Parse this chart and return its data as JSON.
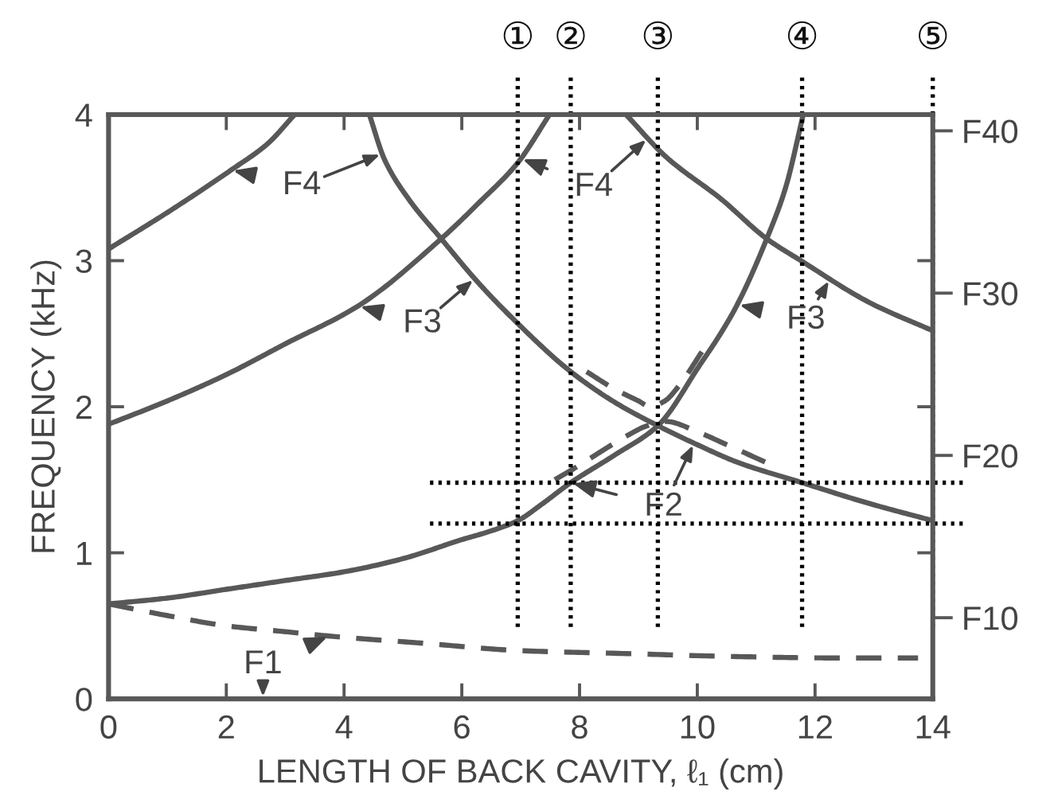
{
  "chart_data": {
    "type": "line",
    "xlabel": "LENGTH OF BACK CAVITY, ℓ₁ (cm)",
    "ylabel": "FREQUENCY (kHz)",
    "xlim": [
      0,
      14
    ],
    "xticks": [
      0,
      2,
      4,
      6,
      8,
      10,
      12,
      14
    ],
    "ylim": [
      0,
      4
    ],
    "yticks": [
      0,
      1,
      2,
      3,
      4
    ],
    "y2_categories": [
      "F40",
      "F30",
      "F20",
      "F10"
    ],
    "grid": false,
    "series": [
      {
        "color": "#585858",
        "line_style": "solid",
        "x": [
          0,
          1,
          2,
          3,
          4,
          5,
          6,
          6.5,
          6.95,
          7.35,
          7.85,
          8.6,
          9.33,
          10.05,
          10.41,
          10.68,
          11.18,
          11.5,
          11.8
        ],
        "values": [
          0.65,
          0.69,
          0.75,
          0.81,
          0.87,
          0.96,
          1.09,
          1.15,
          1.22,
          1.33,
          1.48,
          1.67,
          1.87,
          2.29,
          2.51,
          2.7,
          3.15,
          3.5,
          4.0
        ]
      },
      {
        "color": "#585858",
        "line_style": "solid",
        "x": [
          0,
          1,
          2,
          3,
          4.24,
          5.65,
          6.3,
          6.95,
          7.49
        ],
        "values": [
          1.88,
          2.04,
          2.22,
          2.43,
          2.69,
          3.15,
          3.4,
          3.67,
          4.0
        ]
      },
      {
        "color": "#585858",
        "line_style": "solid",
        "x": [
          0,
          1,
          2.08,
          2.7,
          3.16
        ],
        "values": [
          3.08,
          3.33,
          3.62,
          3.8,
          4.0
        ]
      },
      {
        "color": "#585858",
        "line_style": "solid",
        "x": [
          4.43,
          4.69,
          5.1,
          5.65,
          6.3,
          6.95,
          7.85,
          8.6,
          9.33,
          10.0,
          10.68,
          11.78,
          12.9,
          14
        ],
        "values": [
          4.0,
          3.69,
          3.42,
          3.15,
          2.84,
          2.57,
          2.24,
          2.03,
          1.87,
          1.74,
          1.62,
          1.48,
          1.34,
          1.22
        ]
      },
      {
        "color": "#585858",
        "line_style": "solid",
        "x": [
          8.79,
          9.47,
          10.41,
          11.18,
          11.76,
          12.94,
          14
        ],
        "values": [
          4.0,
          3.71,
          3.42,
          3.15,
          3.0,
          2.71,
          2.52
        ]
      },
      {
        "color": "#585858",
        "line_style": "dashed",
        "x": [
          0,
          1,
          2,
          3,
          3.75,
          5.37,
          7,
          8.8,
          10.6,
          12.4,
          13.75
        ],
        "values": [
          0.65,
          0.57,
          0.5,
          0.46,
          0.43,
          0.38,
          0.33,
          0.31,
          0.29,
          0.28,
          0.28
        ]
      },
      {
        "color": "#585858",
        "line_style": "dashed",
        "x": [
          8.12,
          8.6,
          9.0,
          9.2,
          9.45,
          9.7,
          10.1
        ],
        "values": [
          2.24,
          2.12,
          2.04,
          2.0,
          2.04,
          2.15,
          2.39
        ]
      },
      {
        "color": "#585858",
        "line_style": "dashed",
        "x": [
          7.58,
          8.0,
          8.43,
          8.8,
          9.15,
          9.45,
          10.05,
          10.5,
          11.05,
          11.27
        ],
        "values": [
          1.5,
          1.6,
          1.71,
          1.8,
          1.87,
          1.9,
          1.82,
          1.74,
          1.64,
          1.6
        ]
      }
    ],
    "ref_lines": [
      {
        "axis": "x",
        "value": 6.95,
        "label": "①",
        "color": "#000000",
        "line_style": "dotted"
      },
      {
        "axis": "x",
        "value": 7.85,
        "label": "②",
        "color": "#000000",
        "line_style": "dotted"
      },
      {
        "axis": "x",
        "value": 9.33,
        "label": "③",
        "color": "#000000",
        "line_style": "dotted"
      },
      {
        "axis": "x",
        "value": 11.78,
        "label": "④",
        "color": "#000000",
        "line_style": "dotted"
      },
      {
        "axis": "x",
        "value": 14,
        "label": "⑤",
        "color": "#000000",
        "line_style": "dotted"
      },
      {
        "axis": "y",
        "value": 1.48,
        "color": "#000000",
        "line_style": "dotted"
      },
      {
        "axis": "y",
        "value": 1.2,
        "color": "#000000",
        "line_style": "dotted"
      }
    ],
    "annotations": [
      {
        "text": "F4",
        "x": 2.08,
        "y": 3.62
      },
      {
        "text": "F4",
        "x": 7.0,
        "y": 3.7
      },
      {
        "text": "F3",
        "x": 4.24,
        "y": 2.69
      },
      {
        "text": "F3",
        "x": 10.68,
        "y": 2.7
      },
      {
        "text": "F2",
        "x": 7.85,
        "y": 1.48
      },
      {
        "text": "F1",
        "x": 3.75,
        "y": 0.43
      }
    ]
  }
}
